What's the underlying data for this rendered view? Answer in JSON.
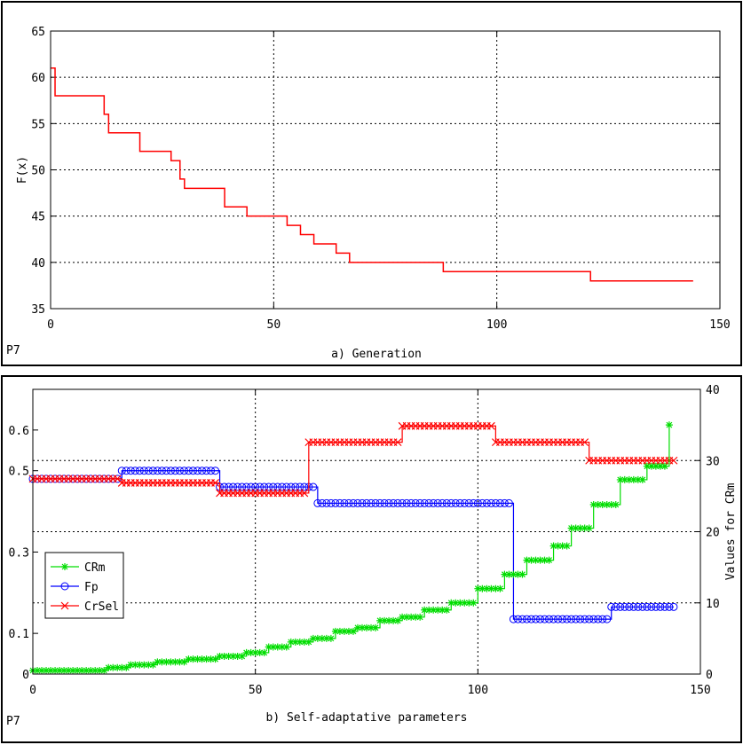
{
  "chart_data": [
    {
      "type": "line",
      "panel_label": "P7",
      "xlabel": "a) Generation",
      "ylabel": "F(x)",
      "xlim": [
        0,
        150
      ],
      "ylim": [
        35,
        65
      ],
      "xticks": [
        0,
        50,
        100,
        150
      ],
      "yticks": [
        35,
        40,
        45,
        50,
        55,
        60,
        65
      ],
      "grid": true,
      "series": [
        {
          "color": "#ff0000",
          "step": true,
          "x": [
            0,
            1,
            11,
            12,
            13,
            19,
            20,
            26,
            27,
            29,
            30,
            38,
            39,
            43,
            44,
            52,
            53,
            55,
            56,
            58,
            59,
            63,
            64,
            66,
            67,
            87,
            88,
            120,
            121,
            144
          ],
          "y": [
            61,
            58,
            58,
            56,
            54,
            54,
            52,
            52,
            51,
            49,
            48,
            48,
            46,
            46,
            45,
            45,
            44,
            44,
            43,
            43,
            42,
            42,
            41,
            41,
            40,
            40,
            39,
            39,
            38,
            38
          ]
        }
      ]
    },
    {
      "type": "line",
      "panel_label": "P7",
      "xlabel": "b) Self-adaptative parameters",
      "ylabel_right": "Values for CRm",
      "xlim": [
        0,
        150
      ],
      "ylim_left": [
        0,
        0.7
      ],
      "ylim_right": [
        0,
        40
      ],
      "xticks": [
        0,
        50,
        100,
        150
      ],
      "yticks_left": [
        0,
        0.1,
        0.3,
        0.5,
        0.6
      ],
      "yticks_right": [
        0,
        10,
        20,
        30,
        40
      ],
      "grid": true,
      "legend_position": "middle-left",
      "series": [
        {
          "name": "CRm",
          "color": "#00dd00",
          "marker": "asterisk",
          "axis": "right",
          "step": true,
          "x": [
            0,
            17,
            22,
            28,
            35,
            42,
            48,
            53,
            58,
            63,
            68,
            73,
            78,
            83,
            88,
            94,
            100,
            106,
            111,
            117,
            121,
            126,
            132,
            138,
            143
          ],
          "y": [
            0.5,
            0.9,
            1.3,
            1.7,
            2.1,
            2.5,
            3,
            3.8,
            4.5,
            5,
            6,
            6.5,
            7.5,
            8,
            9,
            10,
            12,
            14,
            16,
            18,
            20.5,
            23.8,
            27.3,
            29.2,
            35
          ]
        },
        {
          "name": "Fp",
          "color": "#0000ff",
          "marker": "circle",
          "axis": "left",
          "step": true,
          "x": [
            0,
            20,
            42,
            64,
            108,
            130,
            144
          ],
          "y": [
            0.48,
            0.5,
            0.46,
            0.42,
            0.135,
            0.165,
            0.165
          ]
        },
        {
          "name": "CrSel",
          "color": "#ff0000",
          "marker": "x",
          "axis": "left",
          "step": true,
          "x": [
            0,
            20,
            42,
            62,
            83,
            104,
            125,
            144
          ],
          "y": [
            0.48,
            0.47,
            0.445,
            0.57,
            0.61,
            0.57,
            0.525,
            0.525
          ]
        }
      ]
    }
  ]
}
